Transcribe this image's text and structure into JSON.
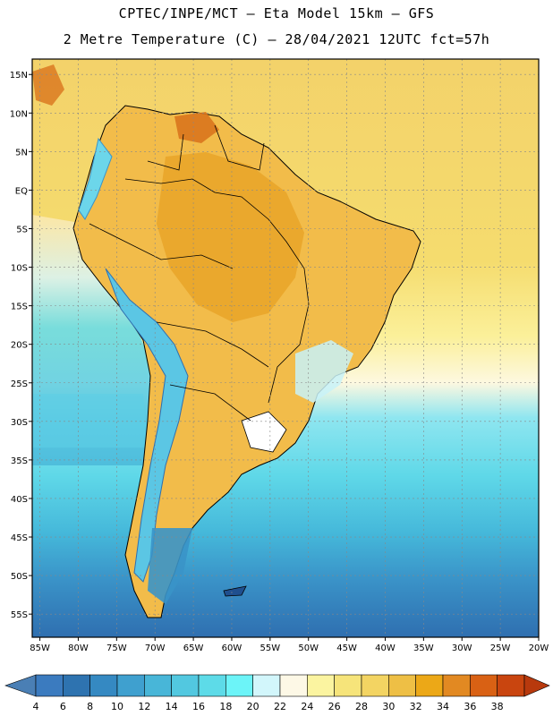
{
  "header": {
    "line1": "CPTEC/INPE/MCT –  Eta Model 15km – GFS",
    "line2": "2 Metre Temperature (C) – 28/04/2021 12UTC fct=57h"
  },
  "map": {
    "lat_labels": [
      "15N",
      "10N",
      "5N",
      "EQ",
      "5S",
      "10S",
      "15S",
      "20S",
      "25S",
      "30S",
      "35S",
      "40S",
      "45S",
      "50S",
      "55S"
    ],
    "lon_labels": [
      "85W",
      "80W",
      "75W",
      "70W",
      "65W",
      "60W",
      "55W",
      "50W",
      "45W",
      "40W",
      "35W",
      "30W",
      "25W",
      "20W"
    ],
    "lat_range": [
      -58,
      17
    ],
    "lon_range": [
      -86,
      -20
    ]
  },
  "colorbar": {
    "labels": [
      "4",
      "6",
      "8",
      "10",
      "12",
      "14",
      "16",
      "18",
      "20",
      "22",
      "24",
      "26",
      "28",
      "30",
      "32",
      "34",
      "36",
      "38"
    ],
    "colors": [
      "#3b7bbf",
      "#2e73b0",
      "#3589c2",
      "#3fa0cf",
      "#48b6d8",
      "#52c8e0",
      "#5ddbe8",
      "#6cf4f8",
      "#d2f6fb",
      "#fdf8e6",
      "#fbf4a0",
      "#f6e47a",
      "#f3d462",
      "#eebf45",
      "#eca817",
      "#e28922",
      "#d96114",
      "#c9450f"
    ],
    "low_color": "#4a7fb5",
    "high_color": "#b8390d"
  }
}
